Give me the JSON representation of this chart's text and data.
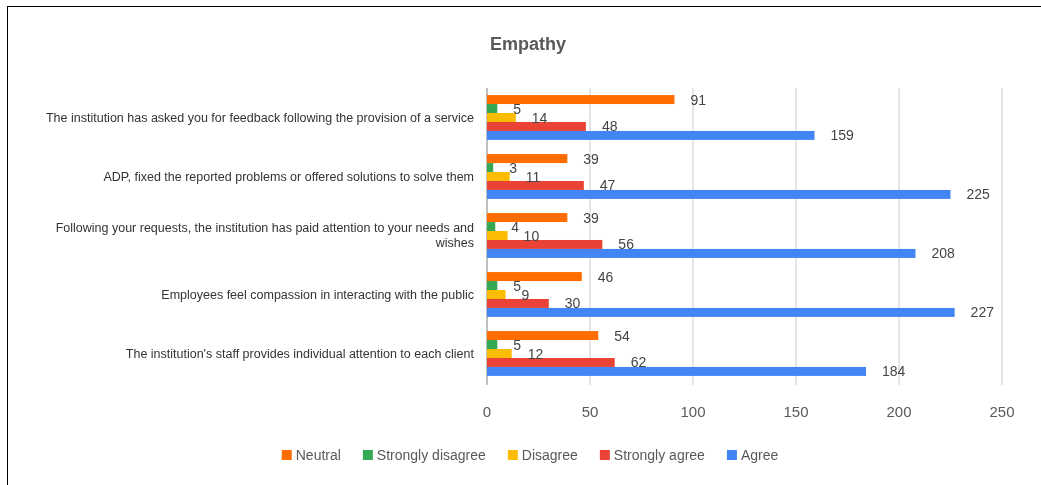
{
  "chart_data": {
    "type": "bar",
    "orientation": "horizontal",
    "title": "Empathy",
    "categories": [
      "The institution has asked you for feedback following the provision of a service",
      "ADP, fixed the reported problems or offered solutions to solve them",
      "Following your requests, the institution has paid attention to your needs and wishes",
      "Employees feel compassion in interacting with the public",
      "The institution's staff provides individual attention to each client"
    ],
    "series": [
      {
        "name": "Neutral",
        "color": "#ff6d01",
        "values": [
          91,
          39,
          39,
          46,
          54
        ]
      },
      {
        "name": "Strongly disagree",
        "color": "#34a853",
        "values": [
          5,
          3,
          4,
          5,
          5
        ]
      },
      {
        "name": "Disagree",
        "color": "#fbbc04",
        "values": [
          14,
          11,
          10,
          9,
          12
        ]
      },
      {
        "name": "Strongly agree",
        "color": "#ea4335",
        "values": [
          48,
          47,
          56,
          30,
          62
        ]
      },
      {
        "name": "Agree",
        "color": "#4285f4",
        "values": [
          159,
          225,
          208,
          227,
          184
        ]
      }
    ],
    "xlim": [
      0,
      250
    ],
    "xticks": [
      0,
      50,
      100,
      150,
      200,
      250
    ],
    "grid": "x",
    "legend": "bottom",
    "data_labels": true
  }
}
